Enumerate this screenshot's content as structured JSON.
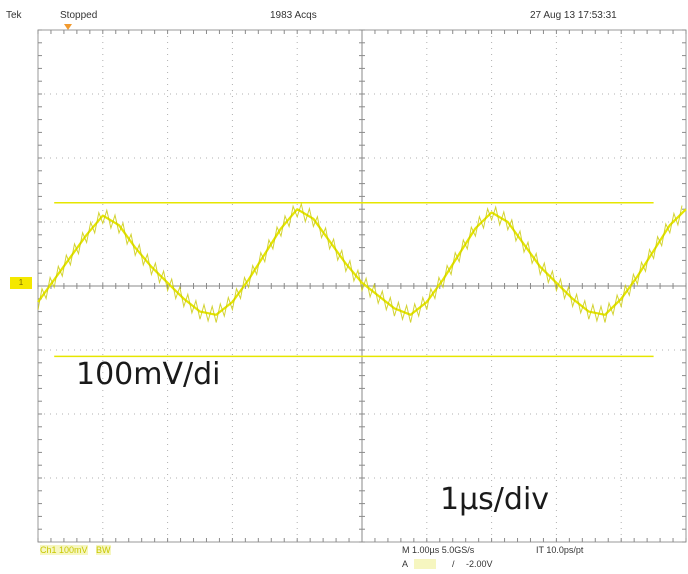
{
  "header": {
    "left_label": "Tek",
    "status": "Stopped",
    "acquisitions": "1983 Acqs",
    "datetime": "27 Aug 13 17:53:31"
  },
  "scale_labels": {
    "vertical": "100mV/di",
    "horizontal": "1µs/div"
  },
  "channel": {
    "marker": "1",
    "color": "#e6e600"
  },
  "footer": {
    "left1": "Ch1  100mV",
    "left2": "BW",
    "timebase": "M 1.00µs 5.0GS/s",
    "record": "IT 10.0ps/pt",
    "trigger_src": "A",
    "trigger_slope": "/",
    "trigger_level": "-2.00V"
  },
  "chart_data": {
    "type": "line",
    "title": "",
    "xlabel": "",
    "ylabel": "",
    "x_divisions": 10,
    "y_divisions": 8,
    "xlim": [
      0,
      10
    ],
    "ylim": [
      -4,
      4
    ],
    "grid": true,
    "series": [
      {
        "name": "",
        "x": [
          0.0,
          0.25,
          0.5,
          0.75,
          1.0,
          1.25,
          1.5,
          1.75,
          2.0,
          2.25,
          2.5,
          2.75,
          3.0,
          3.25,
          3.5,
          3.75,
          4.0,
          4.25,
          4.5,
          4.75,
          5.0,
          5.25,
          5.5,
          5.75,
          6.0,
          6.25,
          6.5,
          6.75,
          7.0,
          7.25,
          7.5,
          7.75,
          8.0,
          8.25,
          8.5,
          8.75,
          9.0,
          9.25,
          9.5,
          9.75,
          10.0
        ],
        "y": [
          -0.25,
          0.1,
          0.45,
          0.8,
          1.1,
          0.95,
          0.6,
          0.3,
          0.05,
          -0.2,
          -0.4,
          -0.45,
          -0.25,
          0.1,
          0.5,
          0.9,
          1.2,
          1.05,
          0.7,
          0.35,
          0.05,
          -0.15,
          -0.35,
          -0.45,
          -0.25,
          0.1,
          0.5,
          0.9,
          1.15,
          1.0,
          0.65,
          0.3,
          0.05,
          -0.2,
          -0.4,
          -0.45,
          -0.2,
          0.15,
          0.55,
          0.95,
          1.2
        ]
      }
    ],
    "cursors": [
      1.3,
      -1.1
    ]
  }
}
